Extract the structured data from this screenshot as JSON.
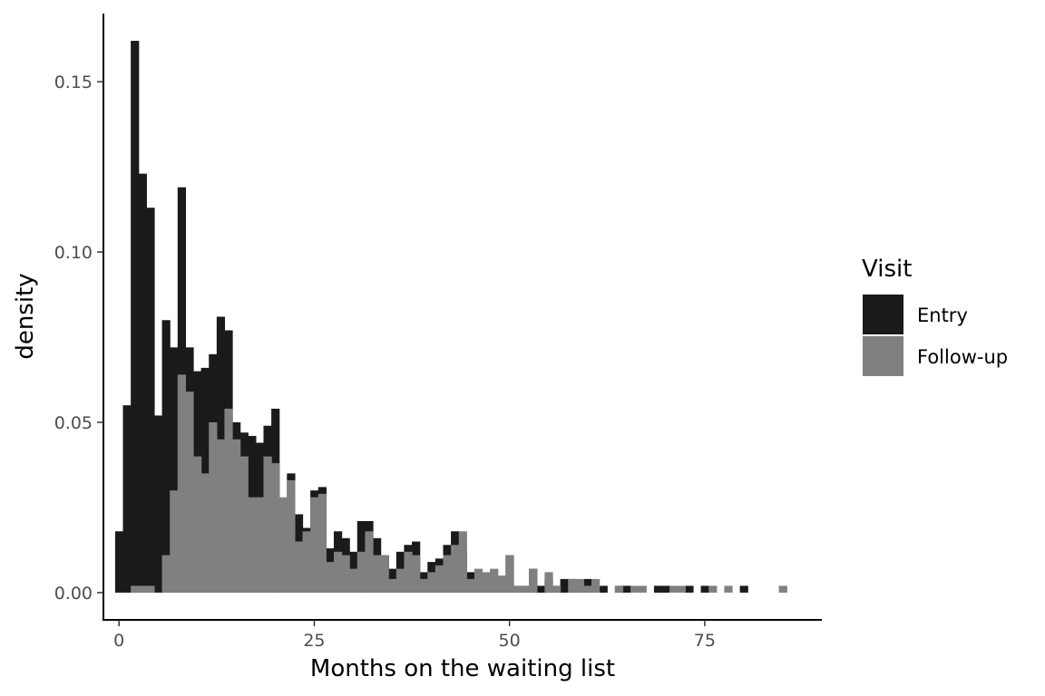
{
  "chart_data": {
    "type": "histogram",
    "xlabel": "Months on the waiting list",
    "ylabel": "density",
    "xlim": [
      -2,
      90
    ],
    "ylim": [
      -0.008,
      0.17
    ],
    "x_ticks": [
      0,
      25,
      50,
      75
    ],
    "x_tick_labels": [
      "0",
      "25",
      "50",
      "75"
    ],
    "y_ticks": [
      0.0,
      0.05,
      0.1,
      0.15
    ],
    "y_tick_labels": [
      "0.00",
      "0.05",
      "0.10",
      "0.15"
    ],
    "grid": false,
    "bin_start": -0.5,
    "bin_width": 1,
    "bin_count": 86,
    "legend": {
      "title": "Visit",
      "position": "right",
      "entries": [
        {
          "label": "Entry",
          "color": "#1a1a1a"
        },
        {
          "label": "Follow-up",
          "color": "#808080"
        }
      ]
    },
    "series": [
      {
        "name": "Entry",
        "color": "#1a1a1a",
        "values": [
          0.018,
          0.055,
          0.162,
          0.123,
          0.113,
          0.052,
          0.08,
          0.072,
          0.119,
          0.072,
          0.065,
          0.066,
          0.07,
          0.081,
          0.077,
          0.05,
          0.047,
          0.046,
          0.044,
          0.049,
          0.054,
          0.025,
          0.035,
          0.023,
          0.019,
          0.03,
          0.031,
          0.013,
          0.018,
          0.016,
          0.012,
          0.021,
          0.021,
          0.016,
          0.011,
          0.007,
          0.012,
          0.014,
          0.015,
          0.006,
          0.009,
          0.01,
          0.014,
          0.018,
          0.012,
          0.006,
          0.006,
          0.005,
          0.005,
          0.004,
          0.011,
          0.002,
          0.002,
          0.007,
          0.002,
          0.004,
          0.002,
          0.004,
          0.004,
          0.002,
          0.004,
          0.0,
          0.002,
          0.0,
          0.002,
          0.002,
          0.0,
          0.0,
          0.0,
          0.002,
          0.002,
          0.0,
          0.0,
          0.002,
          0.0,
          0.002,
          0.0,
          0.0,
          0.0,
          0.0,
          0.002,
          0.0,
          0.0,
          0.0,
          0.0,
          0.0
        ]
      },
      {
        "name": "Follow-up",
        "color": "#808080",
        "values": [
          0.0,
          0.0,
          0.002,
          0.002,
          0.002,
          0.0,
          0.011,
          0.03,
          0.064,
          0.059,
          0.04,
          0.035,
          0.05,
          0.045,
          0.054,
          0.045,
          0.04,
          0.028,
          0.028,
          0.04,
          0.038,
          0.028,
          0.033,
          0.015,
          0.018,
          0.028,
          0.029,
          0.009,
          0.012,
          0.011,
          0.007,
          0.012,
          0.018,
          0.011,
          0.011,
          0.004,
          0.007,
          0.012,
          0.011,
          0.004,
          0.006,
          0.008,
          0.011,
          0.014,
          0.018,
          0.004,
          0.007,
          0.006,
          0.007,
          0.005,
          0.011,
          0.002,
          0.002,
          0.007,
          0.0,
          0.006,
          0.002,
          0.0,
          0.004,
          0.004,
          0.002,
          0.004,
          0.0,
          0.0,
          0.002,
          0.0,
          0.002,
          0.002,
          0.0,
          0.0,
          0.0,
          0.002,
          0.002,
          0.0,
          0.0,
          0.0,
          0.002,
          0.0,
          0.002,
          0.0,
          0.0,
          0.0,
          0.0,
          0.0,
          0.0,
          0.002
        ]
      }
    ]
  }
}
